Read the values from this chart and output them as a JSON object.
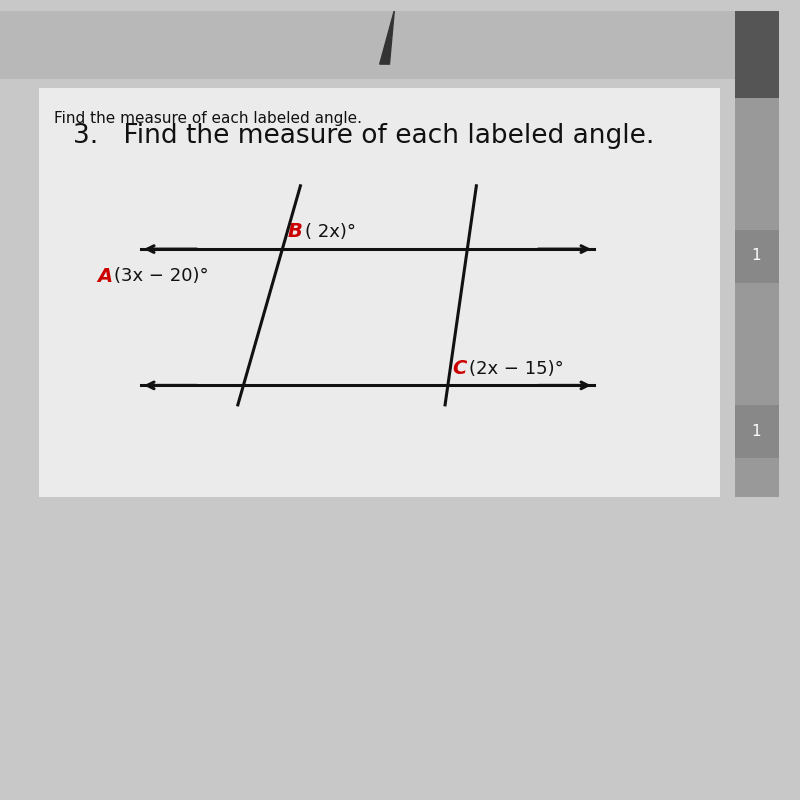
{
  "background_color": "#c8c8c8",
  "card_color": "#ebebeb",
  "top_label": "Find the measure of each labeled angle.",
  "problem_number": "3.",
  "problem_text": "Find the measure of each labeled angle.",
  "label_A": "A",
  "expr_A": "(3x − 20)°",
  "label_B": "B",
  "expr_B": "( 2x)°",
  "label_C": "C",
  "expr_C": "(2x − 15)°",
  "label_color": "#cc0000",
  "line_color": "#111111",
  "text_color": "#111111",
  "figsize": [
    8.0,
    8.0
  ],
  "dpi": 100,
  "top_bar_color": "#c0c0c0",
  "right_bar_color": "#888888"
}
